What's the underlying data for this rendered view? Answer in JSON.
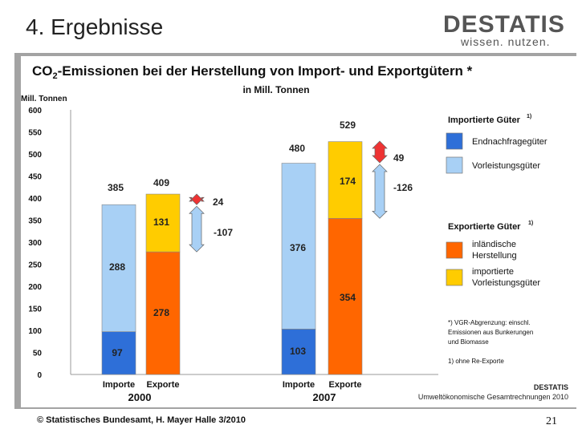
{
  "slide": {
    "title": "4. Ergebnisse",
    "logo_brand": "DESTATIS",
    "logo_tagline": "wissen. nutzen.",
    "footer": "© Statistisches Bundesamt, H. Mayer Halle 3/2010",
    "page_number": "21"
  },
  "chart_data": {
    "type": "bar",
    "title_parts": [
      "CO",
      "2",
      "-Emissionen bei der Herstellung von Import- und Exportgütern *"
    ],
    "subtitle": "in Mill. Tonnen",
    "ylabel": "Mill. Tonnen",
    "ylim": [
      0,
      600
    ],
    "yticks": [
      0,
      50,
      100,
      150,
      200,
      250,
      300,
      350,
      400,
      450,
      500,
      550,
      600
    ],
    "grid": false,
    "categories": [
      "Importe",
      "Exporte",
      "Importe",
      "Exporte"
    ],
    "groups": [
      {
        "year": "2000",
        "bars": [
          0,
          1
        ]
      },
      {
        "year": "2007",
        "bars": [
          2,
          3
        ]
      }
    ],
    "bars": [
      {
        "name": "importe-2000",
        "segments": [
          {
            "series": "Endnachfragegüter",
            "value": 97
          },
          {
            "series": "Vorleistungsgüter",
            "value": 288
          }
        ],
        "total": 385
      },
      {
        "name": "exporte-2000",
        "segments": [
          {
            "series": "inländische Herstellung",
            "value": 278
          },
          {
            "series": "importierte Vorleistungsgüter",
            "value": 131
          }
        ],
        "total": 409
      },
      {
        "name": "importe-2007",
        "segments": [
          {
            "series": "Endnachfragegüter",
            "value": 103
          },
          {
            "series": "Vorleistungsgüter",
            "value": 376
          }
        ],
        "total": 480
      },
      {
        "name": "exporte-2007",
        "segments": [
          {
            "series": "inländische Herstellung",
            "value": 354
          },
          {
            "series": "importierte Vorleistungsgüter",
            "value": 174
          }
        ],
        "total": 529
      }
    ],
    "differences": [
      {
        "group": "2000",
        "from": 385,
        "to": 409,
        "label_pos": "24",
        "label_neg": "-107"
      },
      {
        "group": "2007",
        "from": 480,
        "to": 529,
        "label_pos": "49",
        "label_neg": "-126"
      }
    ],
    "colors": {
      "Endnachfragegüter": "#2e6fd8",
      "Vorleistungsgüter": "#a8d0f5",
      "inländische Herstellung": "#ff6600",
      "importierte Vorleistungsgüter": "#ffcc00",
      "arrow_pos": "#ee3333",
      "arrow_neg": "#a8d0f5"
    },
    "legend": {
      "placement": "right",
      "import_header": "Importierte Güter",
      "export_header": "Exportierte Güter",
      "superscript": "1)",
      "items_import": [
        {
          "series": "Endnachfragegüter",
          "label": [
            "Endnachfragegüter"
          ]
        },
        {
          "series": "Vorleistungsgüter",
          "label": [
            "Vorleistungsgüter"
          ]
        }
      ],
      "items_export": [
        {
          "series": "inländische Herstellung",
          "label": [
            "inländische",
            "Herstellung"
          ]
        },
        {
          "series": "importierte Vorleistungsgüter",
          "label": [
            "importierte",
            "Vorleistungsgüter"
          ]
        }
      ]
    },
    "notes": [
      "*) VGR-Abgrenzung: einschl.",
      "Emissionen aus Bunkerungen",
      "und Biomasse",
      "1)  ohne Re-Exporte"
    ],
    "source": [
      "DESTATIS",
      "Umweltökonomische Gesamtrechnungen 2010"
    ]
  }
}
